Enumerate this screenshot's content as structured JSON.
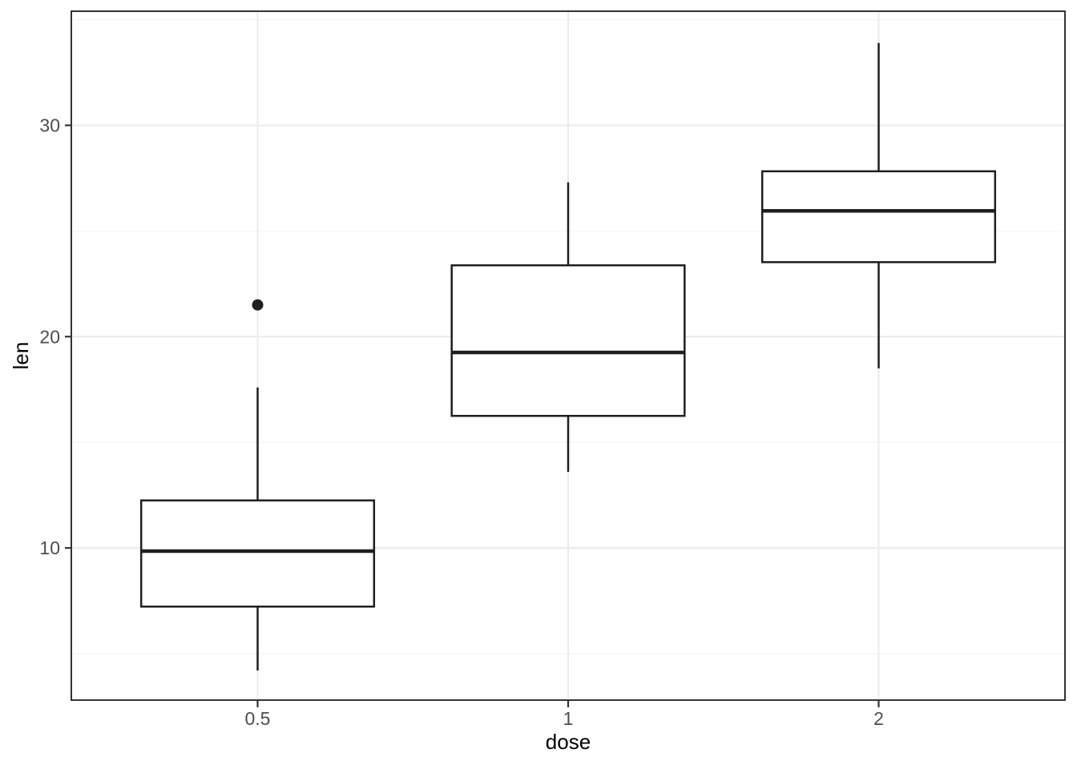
{
  "chart_data": {
    "type": "boxplot",
    "title": "",
    "xlabel": "dose",
    "ylabel": "len",
    "categories": [
      "0.5",
      "1",
      "2"
    ],
    "series": [
      {
        "category": "0.5",
        "whisker_low": 4.2,
        "q1": 7.225,
        "median": 9.85,
        "q3": 12.25,
        "whisker_high": 17.6,
        "outliers": [
          21.5
        ]
      },
      {
        "category": "1",
        "whisker_low": 13.6,
        "q1": 16.25,
        "median": 19.25,
        "q3": 23.375,
        "whisker_high": 27.3,
        "outliers": []
      },
      {
        "category": "2",
        "whisker_low": 18.5,
        "q1": 23.525,
        "median": 25.95,
        "q3": 27.825,
        "whisker_high": 33.9,
        "outliers": []
      }
    ],
    "y_axis": {
      "ticks": [
        10,
        20,
        30
      ],
      "minor_gridlines": [
        5,
        15,
        25,
        35
      ],
      "ylim": [
        2.8,
        35.4
      ]
    },
    "x_axis": {
      "tick_labels": [
        "0.5",
        "1",
        "2"
      ]
    },
    "legend": "none",
    "grid": {
      "horizontal": "major+minor",
      "vertical": "major-at-categories"
    },
    "style": {
      "background": "#ffffff",
      "box_fill": "#ffffff",
      "line_color": "#1f1f1f",
      "grid_major_color": "#ebebeb",
      "grid_minor_color": "#f3f3f3",
      "panel_border_color": "#333333",
      "tick_mark_color": "#333333",
      "tick_label_color": "#4d4d4d",
      "axis_title_color": "#000000"
    }
  }
}
